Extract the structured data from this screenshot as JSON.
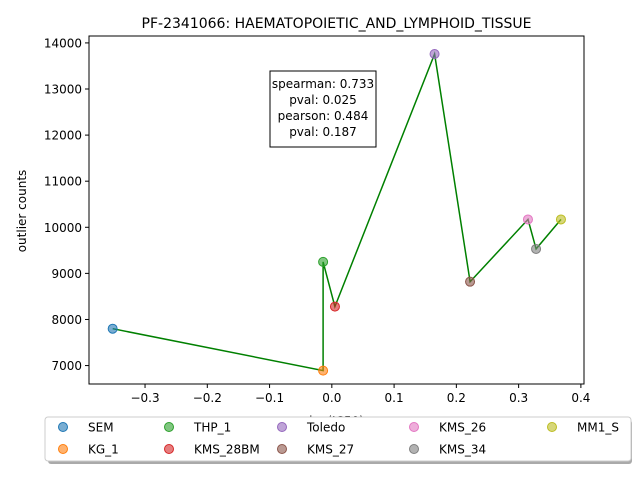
{
  "chart_data": {
    "type": "scatter",
    "title": "PF-2341066: HAEMATOPOIETIC_AND_LYMPHOID_TISSUE",
    "xlabel": "log(IC50)",
    "ylabel": "outlier counts",
    "xlim": [
      -0.39,
      0.405
    ],
    "ylim": [
      6600,
      14150
    ],
    "xticks": [
      -0.3,
      -0.2,
      -0.1,
      0.0,
      0.1,
      0.2,
      0.3,
      0.4
    ],
    "xtick_labels": [
      "−0.3",
      "−0.2",
      "−0.1",
      "0.0",
      "0.1",
      "0.2",
      "0.3",
      "0.4"
    ],
    "yticks": [
      7000,
      8000,
      9000,
      10000,
      11000,
      12000,
      13000,
      14000
    ],
    "ytick_labels": [
      "7000",
      "8000",
      "9000",
      "10000",
      "11000",
      "12000",
      "13000",
      "14000"
    ],
    "series": [
      {
        "name": "SEM",
        "x": -0.352,
        "y": 7800,
        "color": "#1f77b4"
      },
      {
        "name": "KG_1",
        "x": -0.014,
        "y": 6890,
        "color": "#ff7f0e"
      },
      {
        "name": "THP_1",
        "x": -0.014,
        "y": 9250,
        "color": "#2ca02c"
      },
      {
        "name": "KMS_28BM",
        "x": 0.005,
        "y": 8280,
        "color": "#d62728"
      },
      {
        "name": "Toledo",
        "x": 0.165,
        "y": 13760,
        "color": "#9467bd"
      },
      {
        "name": "KMS_27",
        "x": 0.222,
        "y": 8820,
        "color": "#8c564b"
      },
      {
        "name": "KMS_26",
        "x": 0.315,
        "y": 10170,
        "color": "#e377c2"
      },
      {
        "name": "KMS_34",
        "x": 0.328,
        "y": 9530,
        "color": "#7f7f7f"
      },
      {
        "name": "MM1_S",
        "x": 0.368,
        "y": 10170,
        "color": "#bcbd22"
      }
    ],
    "line_color": "#008000",
    "annotation": [
      "spearman: 0.733",
      "pval: 0.025",
      "pearson: 0.484",
      "pval: 0.187"
    ],
    "legend_placement": "bottom",
    "grid": false
  }
}
